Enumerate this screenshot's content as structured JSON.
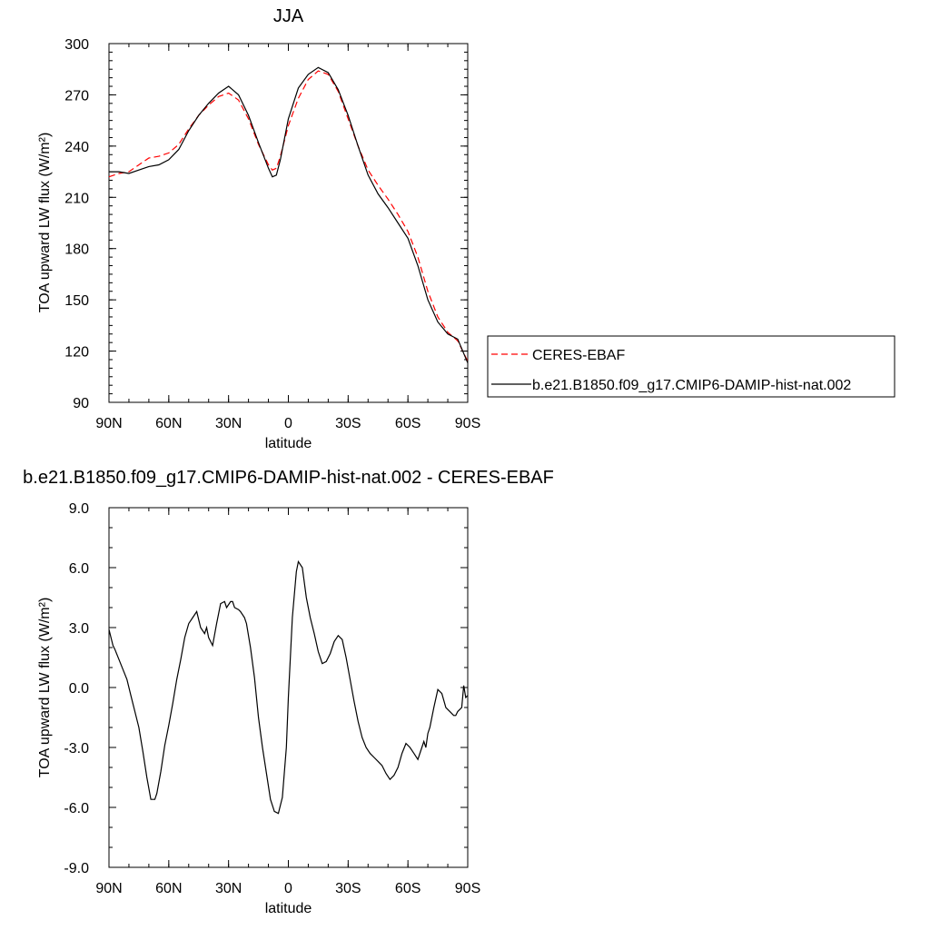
{
  "chart_data": [
    {
      "type": "line",
      "title": "JJA",
      "xlabel": "latitude",
      "ylabel": "TOA upward LW flux (W/m²)",
      "xlim": [
        90,
        -90
      ],
      "ylim": [
        90,
        300
      ],
      "x_ticks": [
        90,
        60,
        30,
        0,
        -30,
        -60,
        -90
      ],
      "x_tick_labels": [
        "90N",
        "60N",
        "30N",
        "0",
        "30S",
        "60S",
        "90S"
      ],
      "y_ticks": [
        90,
        120,
        150,
        180,
        210,
        240,
        270,
        300
      ],
      "y_tick_labels": [
        "90",
        "120",
        "150",
        "180",
        "210",
        "240",
        "270",
        "300"
      ],
      "grid": false,
      "legend_position": "right of plot, lower",
      "series": [
        {
          "name": "CERES-EBAF",
          "color": "#ff0000",
          "dash": "dashed",
          "x": [
            90,
            85,
            80,
            75,
            70,
            65,
            60,
            55,
            50,
            45,
            40,
            35,
            30,
            25,
            20,
            15,
            10,
            8,
            6,
            4,
            0,
            -5,
            -10,
            -15,
            -20,
            -25,
            -30,
            -35,
            -40,
            -45,
            -50,
            -55,
            -60,
            -65,
            -70,
            -75,
            -80,
            -85,
            -90
          ],
          "y": [
            222,
            224,
            225,
            229,
            233,
            234,
            236,
            241,
            250,
            258,
            264,
            269,
            271,
            267,
            256,
            241,
            229,
            226,
            227,
            234,
            252,
            268,
            279,
            284,
            282,
            272,
            256,
            240,
            226,
            217,
            209,
            200,
            190,
            175,
            155,
            140,
            131,
            126,
            114
          ]
        },
        {
          "name": "b.e21.B1850.f09_g17.CMIP6-DAMIP-hist-nat.002",
          "color": "#000000",
          "dash": "solid",
          "x": [
            90,
            85,
            80,
            75,
            70,
            65,
            60,
            55,
            50,
            45,
            40,
            35,
            30,
            25,
            20,
            15,
            10,
            8,
            6,
            4,
            0,
            -5,
            -10,
            -15,
            -20,
            -25,
            -30,
            -35,
            -40,
            -45,
            -50,
            -55,
            -60,
            -65,
            -70,
            -75,
            -80,
            -85,
            -90
          ],
          "y": [
            225,
            225,
            224,
            226,
            228,
            229,
            232,
            238,
            249,
            258,
            265,
            271,
            275,
            270,
            258,
            242,
            227,
            222,
            223,
            232,
            256,
            274,
            282,
            286,
            283,
            273,
            258,
            240,
            223,
            212,
            204,
            195,
            186,
            170,
            150,
            137,
            130,
            127,
            113
          ]
        }
      ]
    },
    {
      "type": "line",
      "title": "b.e21.B1850.f09_g17.CMIP6-DAMIP-hist-nat.002 - CERES-EBAF",
      "xlabel": "latitude",
      "ylabel": "TOA upward LW flux (W/m²)",
      "xlim": [
        90,
        -90
      ],
      "ylim": [
        -9,
        9
      ],
      "x_ticks": [
        90,
        60,
        30,
        0,
        -30,
        -60,
        -90
      ],
      "x_tick_labels": [
        "90N",
        "60N",
        "30N",
        "0",
        "30S",
        "60S",
        "90S"
      ],
      "y_ticks": [
        -9,
        -6,
        -3,
        0,
        3,
        6,
        9
      ],
      "y_tick_labels": [
        "-9.0",
        "-6.0",
        "-3.0",
        "0.0",
        "3.0",
        "6.0",
        "9.0"
      ],
      "grid": false,
      "series": [
        {
          "color": "#000000",
          "dash": "solid",
          "x": [
            90,
            89,
            88,
            87,
            85,
            83,
            81,
            79,
            77,
            75,
            73,
            71,
            69,
            67,
            66,
            64,
            62,
            60,
            58,
            56,
            54,
            52,
            50,
            48,
            46,
            44,
            42,
            41,
            40,
            38,
            36,
            34,
            32,
            31,
            29,
            28,
            27,
            25,
            24,
            22,
            21,
            19,
            17,
            15,
            13,
            11,
            9,
            7,
            5,
            3,
            1,
            0,
            -2,
            -4,
            -5,
            -7,
            -9,
            -11,
            -13,
            -15,
            -17,
            -19,
            -21,
            -23,
            -25,
            -27,
            -29,
            -31,
            -33,
            -35,
            -37,
            -39,
            -41,
            -43,
            -45,
            -47,
            -49,
            -51,
            -53,
            -55,
            -57,
            -59,
            -61,
            -63,
            -65,
            -67,
            -68,
            -69,
            -70,
            -71,
            -73,
            -75,
            -77,
            -79,
            -81,
            -83,
            -84,
            -85,
            -87,
            -88,
            -89,
            -90
          ],
          "y": [
            2.9,
            2.5,
            2.1,
            1.9,
            1.4,
            0.9,
            0.4,
            -0.4,
            -1.2,
            -2.0,
            -3.2,
            -4.5,
            -5.6,
            -5.6,
            -5.3,
            -4.2,
            -2.9,
            -1.9,
            -0.8,
            0.4,
            1.4,
            2.5,
            3.2,
            3.5,
            3.8,
            3.0,
            2.7,
            3.0,
            2.5,
            2.1,
            3.2,
            4.2,
            4.3,
            4.0,
            4.3,
            4.3,
            4.0,
            3.9,
            3.8,
            3.5,
            3.2,
            2.0,
            0.5,
            -1.5,
            -3.0,
            -4.3,
            -5.6,
            -6.2,
            -6.3,
            -5.5,
            -3.0,
            -0.5,
            3.5,
            5.8,
            6.3,
            6.0,
            4.5,
            3.5,
            2.7,
            1.8,
            1.2,
            1.3,
            1.7,
            2.3,
            2.6,
            2.4,
            1.5,
            0.4,
            -0.7,
            -1.7,
            -2.5,
            -3.0,
            -3.3,
            -3.5,
            -3.7,
            -3.9,
            -4.3,
            -4.6,
            -4.4,
            -4.0,
            -3.3,
            -2.8,
            -3.0,
            -3.3,
            -3.6,
            -3.0,
            -2.7,
            -3.0,
            -2.3,
            -2.0,
            -1.0,
            -0.1,
            -0.3,
            -1.0,
            -1.2,
            -1.4,
            -1.4,
            -1.2,
            -1.0,
            0.1,
            -0.5,
            -0.4
          ]
        }
      ]
    }
  ]
}
